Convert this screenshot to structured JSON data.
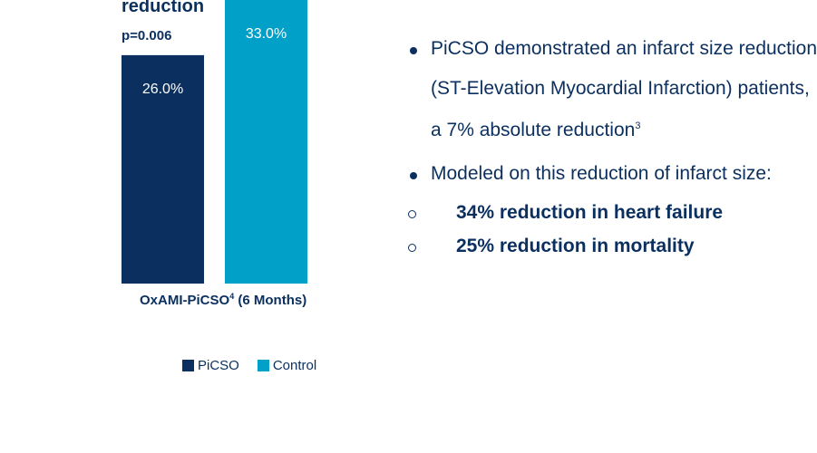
{
  "chart_data": {
    "type": "bar",
    "headline": "reduction",
    "pvalue": "p=0.006",
    "category": "OxAMI-PiCSO",
    "category_sup": "4",
    "category_suffix": "(6 Months)",
    "series": [
      {
        "name": "PiCSO",
        "value": 26.0,
        "label": "26.0%",
        "color": "#0b2f5e"
      },
      {
        "name": "Control",
        "value": 33.0,
        "label": "33.0%",
        "color": "#00a0c9"
      }
    ],
    "ylim": [
      0,
      33.0
    ],
    "grid": false,
    "legend": "bottom"
  },
  "bullets": {
    "line1": "PiCSO demonstrated an infarct size reduction",
    "line2": "(ST-Elevation Myocardial Infarction) patients,",
    "line3": "a 7% absolute reduction",
    "line3_sup": "3",
    "line4": "Modeled on this reduction of infarct size:",
    "sub1": "34% reduction in heart failure",
    "sub2": "25% reduction in mortality"
  }
}
